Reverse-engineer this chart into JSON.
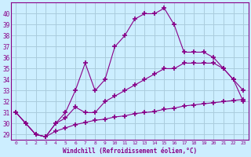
{
  "xlabel": "Windchill (Refroidissement éolien,°C)",
  "bg_color": "#cceeff",
  "grid_color": "#aaccdd",
  "line_color": "#880088",
  "marker": "+",
  "xlim": [
    -0.5,
    23.5
  ],
  "ylim": [
    28.5,
    41.0
  ],
  "xticks": [
    0,
    1,
    2,
    3,
    4,
    5,
    6,
    7,
    8,
    9,
    10,
    11,
    12,
    13,
    14,
    15,
    16,
    17,
    18,
    19,
    20,
    21,
    22,
    23
  ],
  "yticks": [
    29,
    30,
    31,
    32,
    33,
    34,
    35,
    36,
    37,
    38,
    39,
    40
  ],
  "line1_x": [
    0,
    1,
    2,
    3,
    4,
    5,
    6,
    7,
    8,
    9,
    10,
    11,
    12,
    13,
    14,
    15,
    16,
    17,
    18,
    19,
    20,
    21,
    22,
    23
  ],
  "line1_y": [
    31.0,
    30.0,
    29.0,
    28.8,
    29.3,
    29.6,
    29.9,
    30.1,
    30.3,
    30.4,
    30.6,
    30.7,
    30.9,
    31.0,
    31.1,
    31.3,
    31.4,
    31.6,
    31.7,
    31.8,
    31.9,
    32.0,
    32.1,
    32.2
  ],
  "line2_x": [
    0,
    1,
    2,
    3,
    4,
    5,
    6,
    7,
    8,
    9,
    10,
    11,
    12,
    13,
    14,
    15,
    16,
    17,
    18,
    19,
    20,
    21,
    22,
    23
  ],
  "line2_y": [
    31.0,
    30.0,
    29.0,
    28.8,
    30.0,
    30.5,
    31.5,
    31.0,
    31.0,
    32.0,
    32.5,
    33.0,
    33.5,
    34.0,
    34.5,
    35.0,
    35.0,
    35.5,
    35.5,
    35.5,
    35.5,
    35.0,
    34.0,
    33.0
  ],
  "line3_x": [
    0,
    1,
    2,
    3,
    4,
    5,
    6,
    7,
    8,
    9,
    10,
    11,
    12,
    13,
    14,
    15,
    16,
    17,
    18,
    19,
    20,
    21,
    22,
    23
  ],
  "line3_y": [
    31.0,
    30.0,
    29.0,
    28.8,
    30.0,
    31.0,
    33.0,
    35.5,
    33.0,
    34.0,
    37.0,
    38.0,
    39.5,
    40.0,
    40.0,
    40.5,
    39.0,
    36.5,
    36.5,
    36.5,
    36.0,
    35.0,
    34.0,
    32.0
  ]
}
